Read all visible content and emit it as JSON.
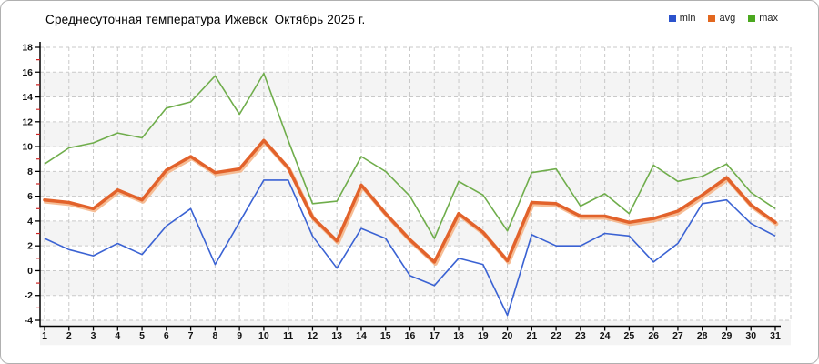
{
  "chart_data": {
    "type": "line",
    "title": "Среднесуточная температура Ижевск  Октябрь 2025 г.",
    "categories": [
      1,
      2,
      3,
      4,
      5,
      6,
      7,
      8,
      9,
      10,
      11,
      12,
      13,
      14,
      15,
      16,
      17,
      18,
      19,
      20,
      21,
      22,
      23,
      24,
      25,
      26,
      27,
      28,
      29,
      30,
      31
    ],
    "ylim": [
      -4,
      18
    ],
    "ytick_step": 2,
    "grid": true,
    "legend_position": "top-right",
    "band_color": "#f4f4f4",
    "gridline_color": "#c9c9c9",
    "axis_color": "#000000",
    "minor_tick_color": "#cc2222",
    "series": [
      {
        "name": "max",
        "color": "#6fad4b",
        "values": [
          8.6,
          9.9,
          10.3,
          11.1,
          10.7,
          13.1,
          13.6,
          15.7,
          12.6,
          15.9,
          10.5,
          5.4,
          5.6,
          9.2,
          8.0,
          6.0,
          2.6,
          7.2,
          6.1,
          3.2,
          7.9,
          8.2,
          5.2,
          6.2,
          4.6,
          8.5,
          7.2,
          7.6,
          8.6,
          6.3,
          5.0
        ]
      },
      {
        "name": "avg",
        "color": "#e2622b",
        "halo_color": "#f5b183",
        "values": [
          5.7,
          5.5,
          5.0,
          6.5,
          5.7,
          8.1,
          9.2,
          7.9,
          8.2,
          10.5,
          8.3,
          4.3,
          2.4,
          6.9,
          4.6,
          2.5,
          0.7,
          4.6,
          3.1,
          0.8,
          5.5,
          5.4,
          4.4,
          4.4,
          3.9,
          4.2,
          4.8,
          6.1,
          7.5,
          5.3,
          3.9
        ]
      },
      {
        "name": "min",
        "color": "#3a62d3",
        "values": [
          2.6,
          1.7,
          1.2,
          2.2,
          1.3,
          3.6,
          5.0,
          0.5,
          3.9,
          7.3,
          7.3,
          2.8,
          0.2,
          3.4,
          2.6,
          -0.4,
          -1.2,
          1.0,
          0.5,
          -3.6,
          2.9,
          2.0,
          2.0,
          3.0,
          2.8,
          0.7,
          2.2,
          5.4,
          5.7,
          3.8,
          2.8
        ]
      }
    ]
  },
  "legend": {
    "items": [
      {
        "label": "min",
        "color": "#2b52cc"
      },
      {
        "label": "avg",
        "color": "#e2671f"
      },
      {
        "label": "max",
        "color": "#4ba81f"
      }
    ]
  }
}
